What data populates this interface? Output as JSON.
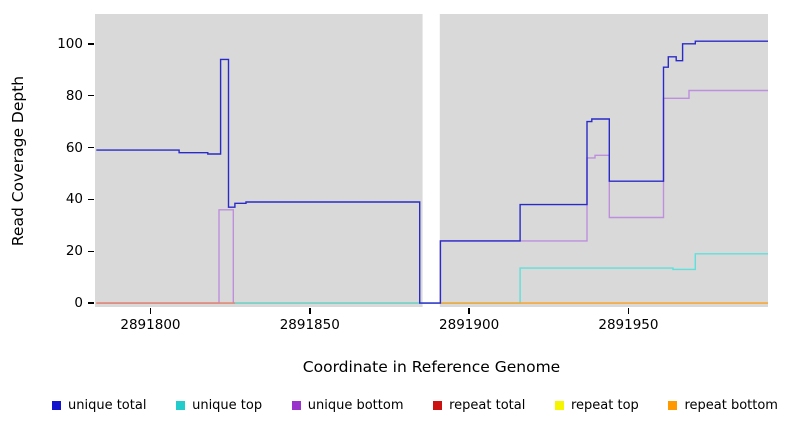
{
  "figure": {
    "background_color": "#ffffff",
    "plot_background_color": "#d9d9d9",
    "xlabel": "Coordinate in Reference Genome",
    "ylabel": "Read Coverage Depth"
  },
  "chart_data": {
    "type": "line",
    "subtype": "step-coverage",
    "title": "",
    "xlabel": "Coordinate in Reference Genome",
    "ylabel": "Read Coverage Depth",
    "x_ticks": [
      2891800,
      2891850,
      2891900,
      2891950
    ],
    "y_ticks": [
      0,
      20,
      40,
      60,
      80,
      100
    ],
    "x_range": [
      2891782.6,
      2891993.8
    ],
    "y_range": [
      -1.5,
      111.5
    ],
    "grid": false,
    "legend_position": "bottom",
    "gap_region": {
      "x_start": 2891885.4,
      "x_end": 2891890.8,
      "color": "#ffffff"
    },
    "series": [
      {
        "name": "unique_total",
        "legend_label": "unique total",
        "line_color": "#2a2ac8",
        "legend_color": "#1414cc",
        "z": 6,
        "points": [
          [
            2891783,
            59
          ],
          [
            2891809,
            59
          ],
          [
            2891809,
            58
          ],
          [
            2891818,
            58
          ],
          [
            2891818,
            57.5
          ],
          [
            2891822,
            57.5
          ],
          [
            2891822,
            94
          ],
          [
            2891824.5,
            94
          ],
          [
            2891824.5,
            37
          ],
          [
            2891826.5,
            37
          ],
          [
            2891826.5,
            38.5
          ],
          [
            2891830,
            38.5
          ],
          [
            2891830,
            39
          ],
          [
            2891884.5,
            39
          ],
          [
            2891884.5,
            0
          ],
          [
            2891891,
            0
          ],
          [
            2891891,
            24
          ],
          [
            2891916,
            24
          ],
          [
            2891916,
            38
          ],
          [
            2891937,
            38
          ],
          [
            2891937,
            70
          ],
          [
            2891938.5,
            70
          ],
          [
            2891938.5,
            71
          ],
          [
            2891944,
            71
          ],
          [
            2891944,
            47
          ],
          [
            2891961,
            47
          ],
          [
            2891961,
            91
          ],
          [
            2891962.5,
            91
          ],
          [
            2891962.5,
            95
          ],
          [
            2891965,
            95
          ],
          [
            2891965,
            93.5
          ],
          [
            2891967,
            93.5
          ],
          [
            2891967,
            100
          ],
          [
            2891971,
            100
          ],
          [
            2891971,
            101
          ],
          [
            2891993.8,
            101
          ]
        ]
      },
      {
        "name": "unique_top",
        "legend_label": "unique top",
        "line_color": "#5fe0da",
        "legend_color": "#22cccc",
        "z": 4,
        "points": [
          [
            2891826.5,
            0
          ],
          [
            2891916,
            0
          ],
          [
            2891916,
            13.5
          ],
          [
            2891964,
            13.5
          ],
          [
            2891964,
            13
          ],
          [
            2891971,
            13
          ],
          [
            2891971,
            19
          ],
          [
            2891993.8,
            19
          ]
        ]
      },
      {
        "name": "unique_bottom",
        "legend_label": "unique bottom",
        "line_color": "#bd8fdd",
        "legend_color": "#9933cc",
        "z": 1,
        "points": [
          [
            2891783,
            0
          ],
          [
            2891821.5,
            0
          ],
          [
            2891821.5,
            36
          ],
          [
            2891826,
            36
          ],
          [
            2891826,
            0
          ],
          [
            2891884.5,
            0
          ],
          [
            2891891,
            0
          ],
          [
            2891891,
            24
          ],
          [
            2891937,
            24
          ],
          [
            2891937,
            56
          ],
          [
            2891939.5,
            56
          ],
          [
            2891939.5,
            57
          ],
          [
            2891944,
            57
          ],
          [
            2891944,
            33
          ],
          [
            2891961,
            33
          ],
          [
            2891961,
            79
          ],
          [
            2891969,
            79
          ],
          [
            2891969,
            82
          ],
          [
            2891993.8,
            82
          ]
        ]
      },
      {
        "name": "repeat_total",
        "legend_label": "repeat total",
        "line_color": "#dd7a7a",
        "legend_color": "#cc1111",
        "z": 3,
        "points": [
          [
            2891783,
            0
          ],
          [
            2891884.5,
            0
          ]
        ]
      },
      {
        "name": "repeat_top",
        "legend_label": "repeat top",
        "line_color": "#f0f060",
        "legend_color": "#f5f500",
        "z": 2,
        "points": [
          [
            2891783,
            0
          ],
          [
            2891884.5,
            0
          ]
        ]
      },
      {
        "name": "repeat_bottom",
        "legend_label": "repeat bottom",
        "line_color": "#ffA01e",
        "legend_color": "#ff9900",
        "z": 5,
        "points": [
          [
            2891891,
            0
          ],
          [
            2891993.8,
            0
          ]
        ]
      }
    ]
  }
}
